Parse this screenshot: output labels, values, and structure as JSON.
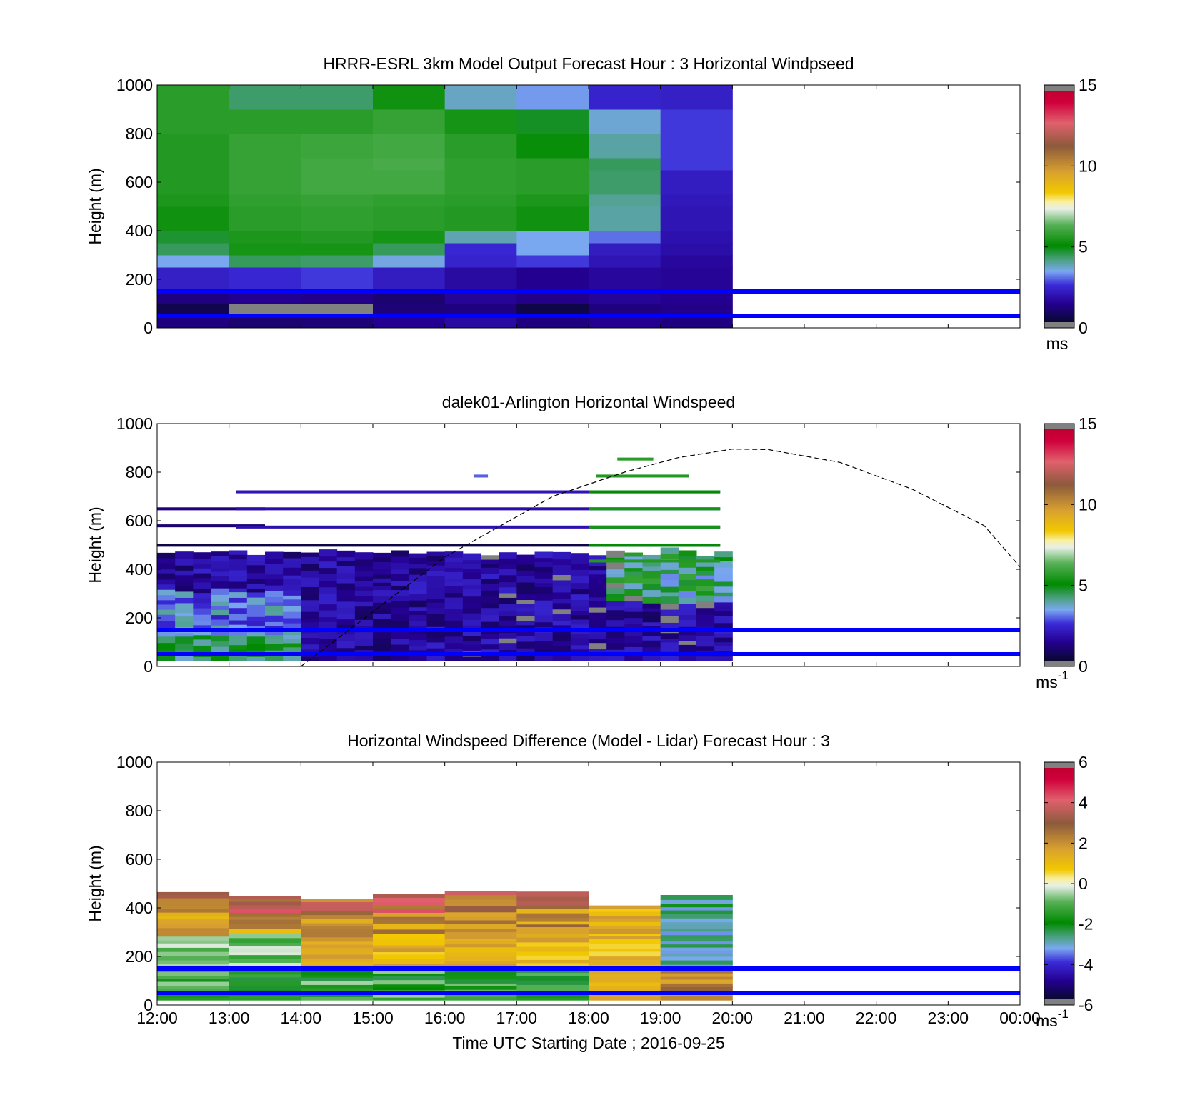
{
  "x_axis": {
    "ticks": [
      "12:00",
      "13:00",
      "14:00",
      "15:00",
      "16:00",
      "17:00",
      "18:00",
      "19:00",
      "20:00",
      "21:00",
      "22:00",
      "23:00",
      "00:00"
    ],
    "label": "Time UTC  Starting Date ; 2016-09-25"
  },
  "y_axis": {
    "label": "Height (m)",
    "ticks": [
      "0",
      "200",
      "400",
      "600",
      "800",
      "1000"
    ]
  },
  "chart_data": [
    {
      "type": "heatmap",
      "title": "HRRR-ESRL 3km Model Output   Forecast Hour : 3 Horizontal Windpseed",
      "xlabel": "",
      "ylabel": "Height (m)",
      "xlim": [
        "12:00",
        "00:00"
      ],
      "ylim": [
        0,
        1000
      ],
      "data_extent": [
        "12:00",
        "20:00"
      ],
      "colorbar": {
        "min": 0,
        "max": 15,
        "ticks": [
          "0",
          "5",
          "10",
          "15"
        ],
        "unit_base": "ms",
        "unit_exp": ""
      },
      "reference_lines": [
        {
          "height": 50,
          "color": "#0000ff"
        },
        {
          "height": 150,
          "color": "#0000ff"
        }
      ],
      "column_edges_hours": [
        0,
        1,
        2,
        3,
        4,
        5,
        6,
        7,
        8
      ],
      "row_edges": [
        0,
        60,
        100,
        160,
        250,
        300,
        350,
        400,
        500,
        550,
        650,
        700,
        800,
        900,
        1000
      ],
      "values": [
        [
          1.0,
          0.8,
          0.9,
          1.2,
          1.5,
          1.0,
          1.2,
          1.0
        ],
        [
          0.4,
          0.1,
          0.1,
          0.9,
          1.0,
          0.3,
          1.0,
          1.1
        ],
        [
          1.0,
          1.2,
          1.1,
          0.8,
          1.3,
          1.1,
          1.3,
          1.2
        ],
        [
          2.1,
          2.3,
          2.5,
          2.0,
          1.5,
          1.2,
          1.4,
          1.3
        ],
        [
          3.3,
          4.3,
          4.2,
          3.4,
          2.2,
          2.5,
          1.8,
          1.4
        ],
        [
          4.3,
          5.3,
          5.3,
          4.3,
          2.3,
          3.3,
          2.0,
          1.6
        ],
        [
          4.6,
          5.4,
          5.5,
          5.3,
          3.7,
          3.3,
          2.9,
          1.7
        ],
        [
          5.2,
          5.6,
          5.7,
          5.6,
          5.5,
          5.2,
          3.8,
          1.8
        ],
        [
          5.4,
          5.7,
          5.8,
          5.7,
          5.6,
          5.4,
          3.9,
          1.9
        ],
        [
          5.5,
          5.8,
          6.0,
          6.0,
          5.7,
          5.6,
          4.2,
          2.0
        ],
        [
          5.5,
          5.8,
          6.0,
          6.1,
          5.7,
          5.6,
          4.3,
          2.5
        ],
        [
          5.5,
          5.8,
          5.9,
          6.0,
          5.6,
          5.1,
          3.8,
          2.5
        ],
        [
          5.6,
          5.6,
          5.6,
          5.8,
          5.3,
          4.7,
          3.5,
          2.5
        ],
        [
          5.6,
          4.2,
          4.2,
          5.2,
          3.6,
          3.2,
          2.2,
          2.1
        ]
      ]
    },
    {
      "type": "heatmap",
      "title": "dalek01-Arlington  Horizontal Windspeed",
      "xlabel": "",
      "ylabel": "Height (m)",
      "xlim": [
        "12:00",
        "00:00"
      ],
      "ylim": [
        0,
        1000
      ],
      "data_extent": [
        "12:00",
        "19:50"
      ],
      "colorbar": {
        "min": 0,
        "max": 15,
        "ticks": [
          "0",
          "5",
          "10",
          "15"
        ],
        "unit_base": "ms",
        "unit_exp": "-1"
      },
      "reference_lines": [
        {
          "height": 50,
          "color": "#0000ff"
        },
        {
          "height": 150,
          "color": "#0000ff"
        }
      ],
      "overlay_curve": {
        "style": "dashed",
        "points": [
          [
            2.0,
            0
          ],
          [
            4.0,
            450
          ],
          [
            5.5,
            700
          ],
          [
            6.5,
            800
          ],
          [
            7.25,
            860
          ],
          [
            8.0,
            895
          ],
          [
            8.5,
            893
          ],
          [
            9.5,
            840
          ],
          [
            10.5,
            730
          ],
          [
            11.5,
            580
          ],
          [
            12.0,
            410
          ]
        ]
      }
    },
    {
      "type": "heatmap",
      "title": "Horizontal Windspeed Difference (Model - Lidar) Forecast Hour : 3",
      "xlabel": "Time UTC  Starting Date ; 2016-09-25",
      "ylabel": "Height (m)",
      "xlim": [
        "12:00",
        "00:00"
      ],
      "ylim": [
        0,
        1000
      ],
      "data_extent": [
        "12:00",
        "20:00"
      ],
      "colorbar": {
        "min": -6,
        "max": 6,
        "ticks": [
          "-6",
          "-4",
          "-2",
          "0",
          "2",
          "4",
          "6"
        ],
        "unit_base": "ms",
        "unit_exp": "-1"
      },
      "reference_lines": [
        {
          "height": 50,
          "color": "#0000ff"
        },
        {
          "height": 150,
          "color": "#0000ff"
        }
      ],
      "column_edges_hours": [
        0,
        1,
        2,
        3,
        4,
        5,
        6,
        7,
        8
      ],
      "column_tops": [
        460,
        450,
        430,
        450,
        460,
        450,
        400,
        450
      ]
    }
  ]
}
